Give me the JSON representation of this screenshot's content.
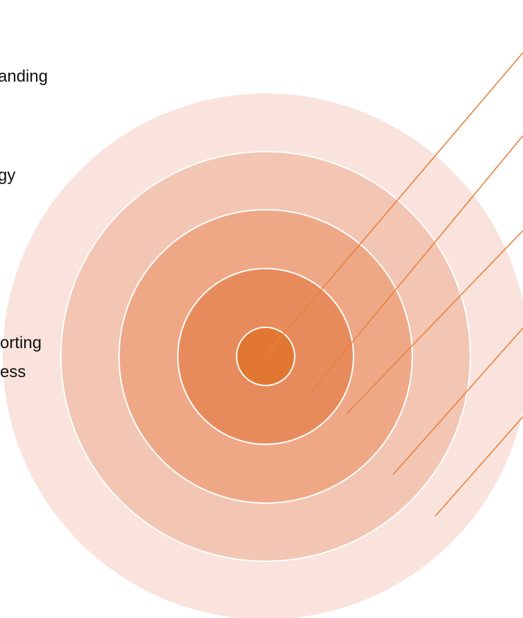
{
  "diagram": {
    "type": "concentric-target",
    "colors": {
      "ring_1_outer": "#F9E3DC",
      "ring_2": "#F3C5B3",
      "ring_3": "#EEA886",
      "ring_4": "#E88B5C",
      "core": "#E17732",
      "ring_border": "#ffffff",
      "leader_line": "#E8803C"
    },
    "labels": [
      "anding",
      "gy",
      "orting",
      "ess"
    ]
  }
}
